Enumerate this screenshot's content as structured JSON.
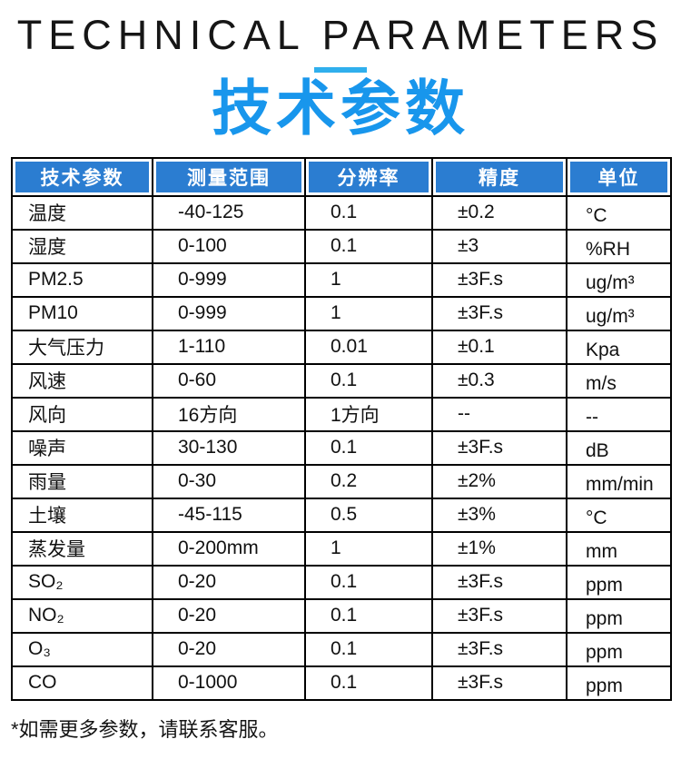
{
  "header": {
    "title_en": "TECHNICAL PARAMETERS",
    "title_zh": "技术参数"
  },
  "theme": {
    "title_blue": "#1896EC",
    "divider_blue": "#2FAFED",
    "table_header_bg": "#2B7DD1",
    "table_header_text": "#FFFFFF",
    "table_border": "#000000"
  },
  "table": {
    "headers": [
      "技术参数",
      "测量范围",
      "分辨率",
      "精度",
      "单位"
    ],
    "rows": [
      [
        "温度",
        "-40-125",
        "0.1",
        "±0.2",
        "°C"
      ],
      [
        "湿度",
        "0-100",
        "0.1",
        "±3",
        "%RH"
      ],
      [
        "PM2.5",
        "0-999",
        "1",
        "±3F.s",
        "ug/m³"
      ],
      [
        "PM10",
        "0-999",
        "1",
        "±3F.s",
        "ug/m³"
      ],
      [
        "大气压力",
        "1-110",
        "0.01",
        "±0.1",
        "Kpa"
      ],
      [
        "风速",
        "0-60",
        "0.1",
        "±0.3",
        "m/s"
      ],
      [
        "风向",
        "16方向",
        "1方向",
        "--",
        "--"
      ],
      [
        "噪声",
        "30-130",
        "0.1",
        "±3F.s",
        "dB"
      ],
      [
        "雨量",
        "0-30",
        "0.2",
        "±2%",
        "mm/min"
      ],
      [
        "土壤",
        "-45-115",
        "0.5",
        "±3%",
        "°C"
      ],
      [
        "蒸发量",
        "0-200mm",
        "1",
        "±1%",
        "mm"
      ],
      [
        "SO₂",
        "0-20",
        "0.1",
        "±3F.s",
        "ppm"
      ],
      [
        "NO₂",
        "0-20",
        "0.1",
        "±3F.s",
        "ppm"
      ],
      [
        "O₃",
        "0-20",
        "0.1",
        "±3F.s",
        "ppm"
      ],
      [
        "CO",
        "0-1000",
        "0.1",
        "±3F.s",
        "ppm"
      ]
    ]
  },
  "footer": {
    "note": "*如需更多参数，请联系客服。"
  }
}
